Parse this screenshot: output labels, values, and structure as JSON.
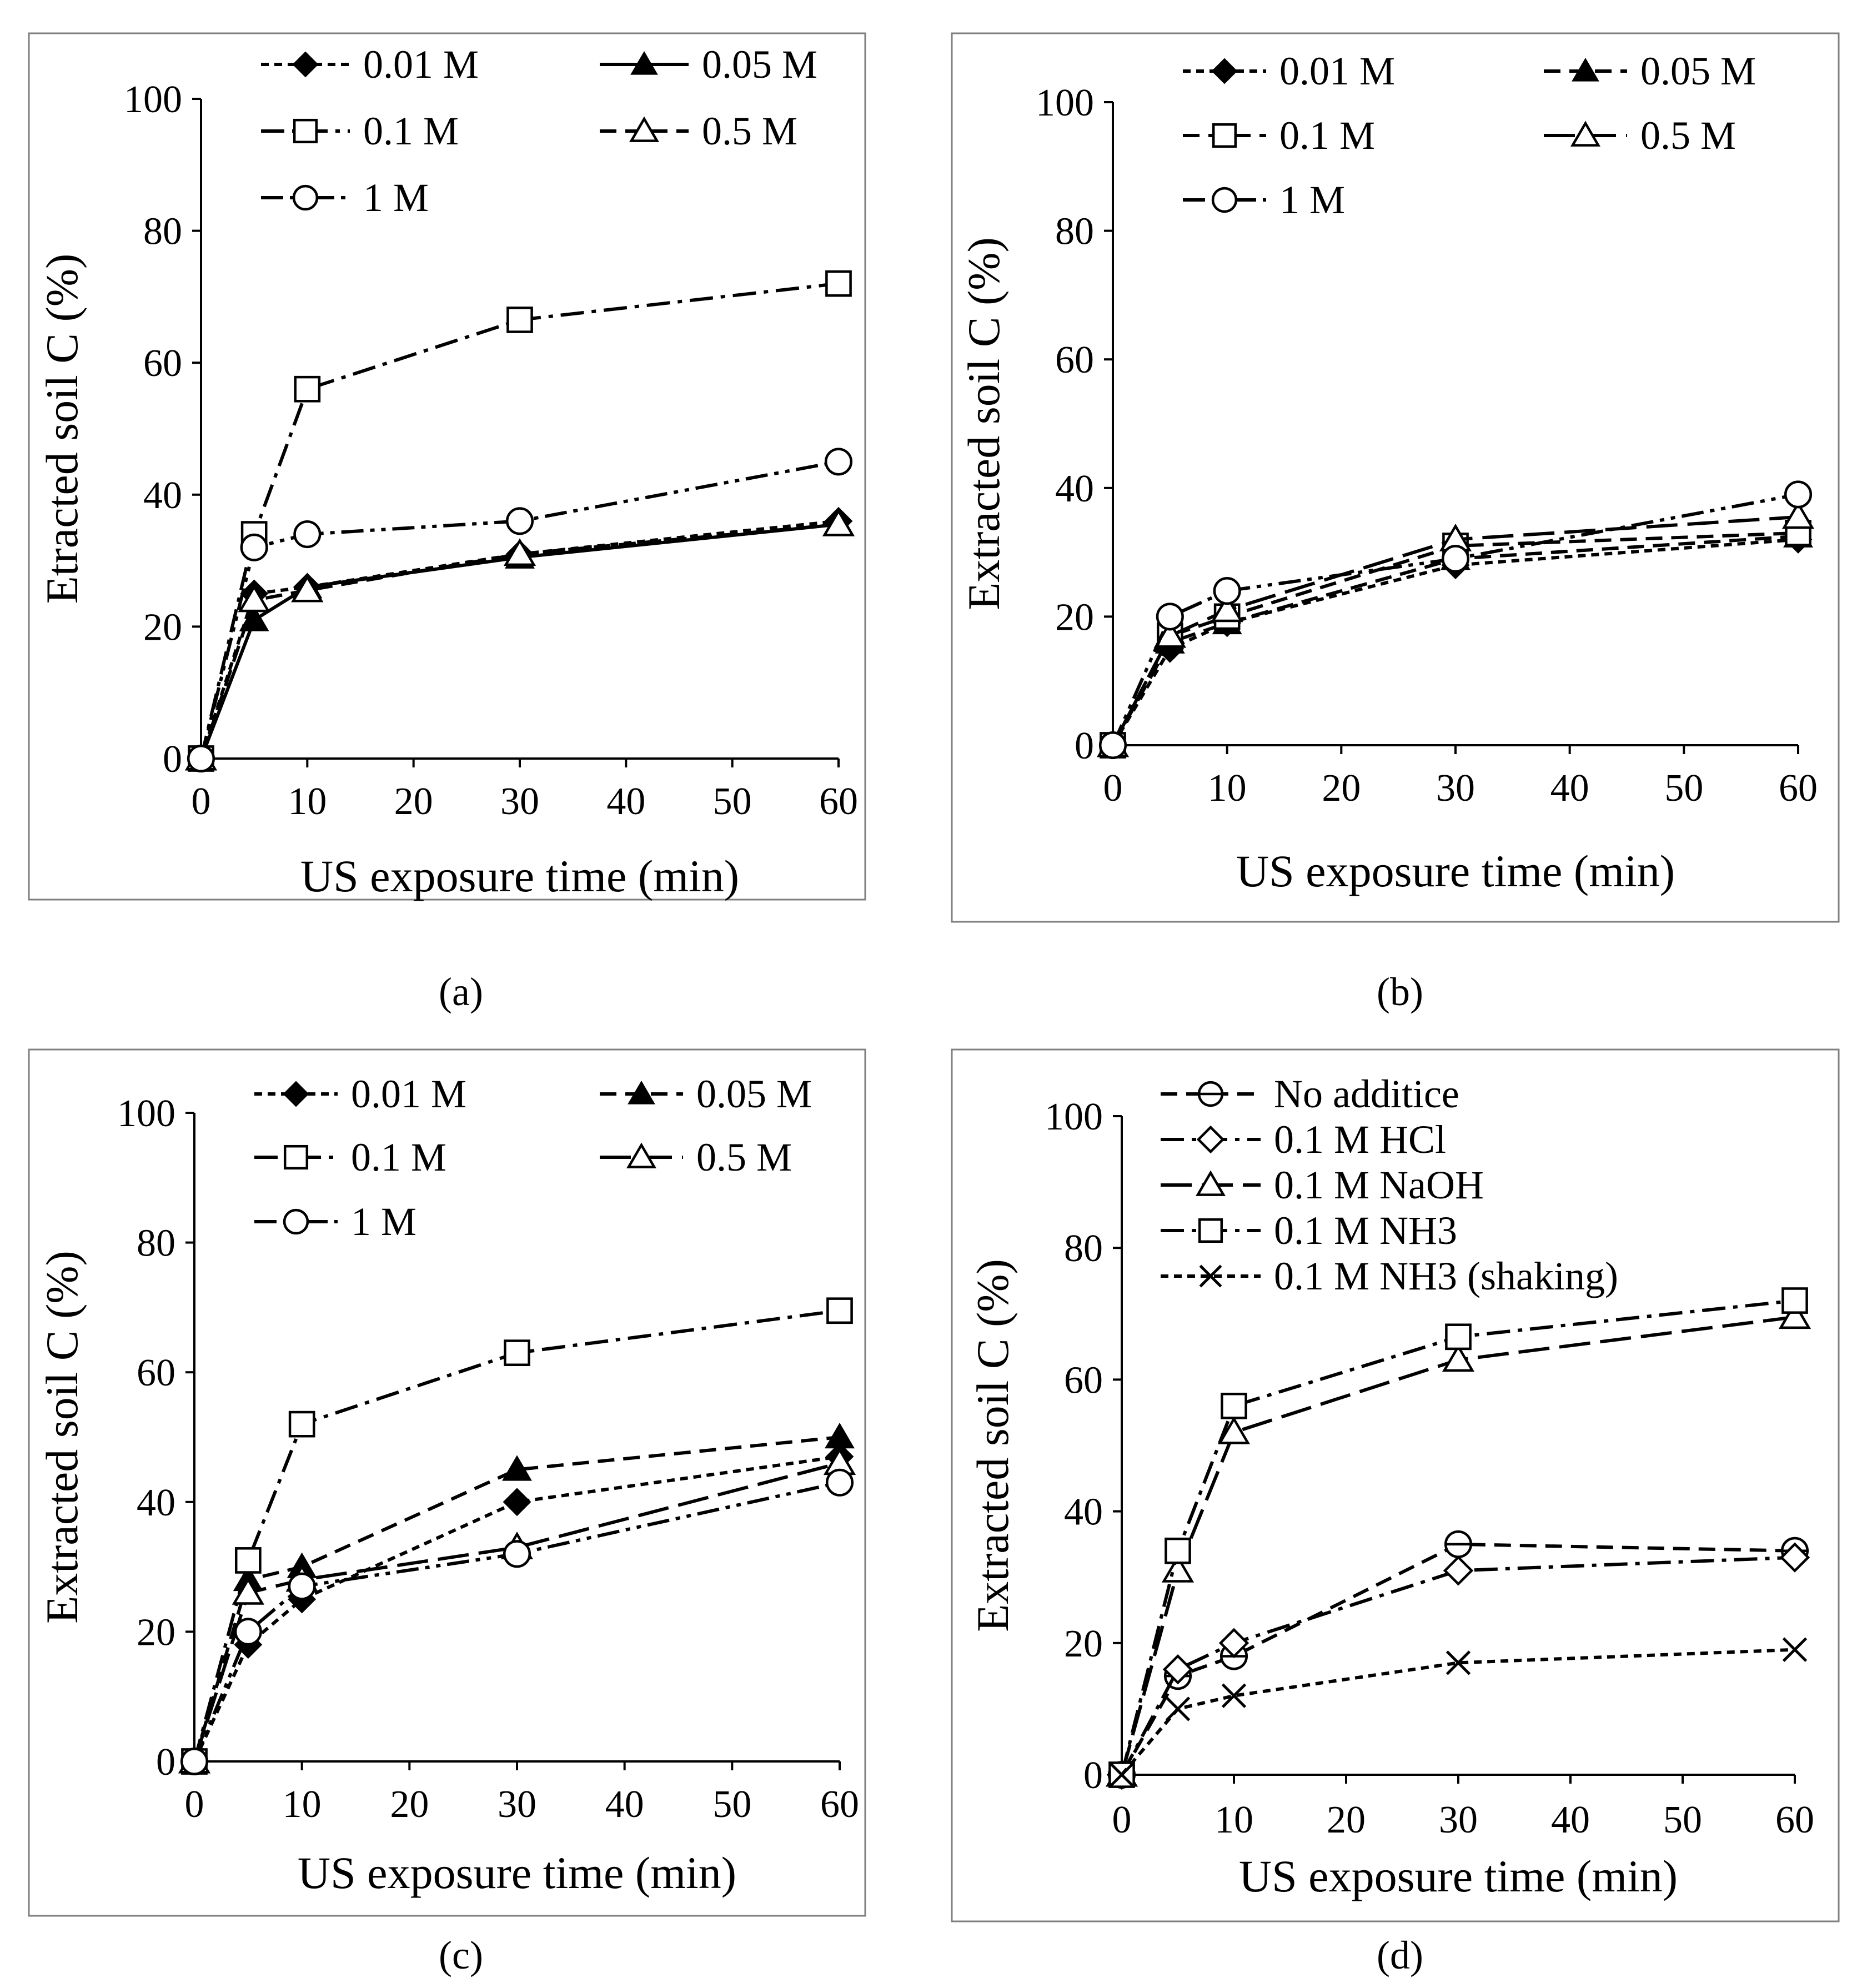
{
  "chart_data": [
    {
      "panel": "a",
      "caption": "(a)",
      "type": "line",
      "xlabel": "US exposure time (min)",
      "ylabel": "Etracted soil C (%)",
      "xlim": [
        0,
        60
      ],
      "ylim": [
        0,
        100
      ],
      "xticks": [
        "0",
        "10",
        "20",
        "30",
        "40",
        "50",
        "60"
      ],
      "yticks": [
        "0",
        "20",
        "40",
        "60",
        "80",
        "100"
      ],
      "x": [
        0,
        5,
        10,
        30,
        60
      ],
      "legend_position": "top",
      "series": [
        {
          "name": "0.01 M",
          "marker": "diamond-filled",
          "dash": "short",
          "values": [
            0,
            25,
            26,
            31,
            36
          ]
        },
        {
          "name": "0.05 M",
          "marker": "triangle-filled",
          "dash": "solid",
          "values": [
            0,
            21,
            26,
            30.5,
            35.5
          ]
        },
        {
          "name": "0.1 M",
          "marker": "square-open",
          "dash": "dashdot",
          "values": [
            0,
            34,
            56,
            66.5,
            72
          ]
        },
        {
          "name": "0.5 M",
          "marker": "triangle-open",
          "dash": "dash",
          "values": [
            0,
            24,
            25.5,
            31,
            35.5
          ]
        },
        {
          "name": "1 M",
          "marker": "circle-open",
          "dash": "dashdotdot",
          "values": [
            0,
            32,
            34,
            36,
            45
          ]
        }
      ]
    },
    {
      "panel": "b",
      "caption": "(b)",
      "type": "line",
      "xlabel": "US exposure time (min)",
      "ylabel": "Extracted soil C (%)",
      "xlim": [
        0,
        60
      ],
      "ylim": [
        0,
        100
      ],
      "xticks": [
        "0",
        "10",
        "20",
        "30",
        "40",
        "50",
        "60"
      ],
      "yticks": [
        "0",
        "20",
        "40",
        "60",
        "80",
        "100"
      ],
      "x": [
        0,
        5,
        10,
        30,
        60
      ],
      "legend_position": "top",
      "series": [
        {
          "name": "0.01 M",
          "marker": "diamond-filled",
          "dash": "short",
          "values": [
            0,
            15,
            19,
            28,
            32
          ]
        },
        {
          "name": "0.05 M",
          "marker": "triangle-filled",
          "dash": "dash",
          "values": [
            0,
            16,
            19,
            29,
            32.5
          ]
        },
        {
          "name": "0.1 M",
          "marker": "square-open",
          "dash": "dash",
          "values": [
            0,
            17,
            20,
            31,
            33
          ]
        },
        {
          "name": "0.5 M",
          "marker": "triangle-open",
          "dash": "longdash",
          "values": [
            0,
            17,
            21,
            32,
            35.5
          ]
        },
        {
          "name": "1 M",
          "marker": "circle-open",
          "dash": "dashdotdot",
          "values": [
            0,
            20,
            24,
            29,
            39
          ]
        }
      ]
    },
    {
      "panel": "c",
      "caption": "(c)",
      "type": "line",
      "xlabel": "US exposure time (min)",
      "ylabel": "Extracted soil C (%)",
      "xlim": [
        0,
        60
      ],
      "ylim": [
        0,
        100
      ],
      "xticks": [
        "0",
        "10",
        "20",
        "30",
        "40",
        "50",
        "60"
      ],
      "yticks": [
        "0",
        "20",
        "40",
        "60",
        "80",
        "100"
      ],
      "x": [
        0,
        5,
        10,
        30,
        60
      ],
      "legend_position": "top",
      "series": [
        {
          "name": "0.01 M",
          "marker": "diamond-filled",
          "dash": "short",
          "values": [
            0,
            18,
            25,
            40,
            47
          ]
        },
        {
          "name": "0.05 M",
          "marker": "triangle-filled",
          "dash": "dash",
          "values": [
            0,
            28,
            30,
            45,
            50
          ]
        },
        {
          "name": "0.1 M",
          "marker": "square-open",
          "dash": "dashdot",
          "values": [
            0,
            31,
            52,
            63,
            69.5
          ]
        },
        {
          "name": "0.5 M",
          "marker": "triangle-open",
          "dash": "longdash",
          "values": [
            0,
            26,
            28,
            33,
            46
          ]
        },
        {
          "name": "1 M",
          "marker": "circle-open",
          "dash": "dashdotdot",
          "values": [
            0,
            20,
            27,
            32,
            43
          ]
        }
      ]
    },
    {
      "panel": "d",
      "caption": "(d)",
      "type": "line",
      "xlabel": "US exposure time (min)",
      "ylabel": "Extracted soil C (%)",
      "xlim": [
        0,
        60
      ],
      "ylim": [
        0,
        100
      ],
      "xticks": [
        "0",
        "10",
        "20",
        "30",
        "40",
        "50",
        "60"
      ],
      "yticks": [
        "0",
        "20",
        "40",
        "60",
        "80",
        "100"
      ],
      "x": [
        0,
        5,
        10,
        30,
        60
      ],
      "legend_position": "top-left",
      "series": [
        {
          "name": "No additice",
          "marker": "circle-minus",
          "dash": "dash",
          "values": [
            0,
            15,
            18,
            35,
            34
          ]
        },
        {
          "name": "0.1 M HCl",
          "marker": "diamond-open",
          "dash": "dashdot",
          "values": [
            0,
            16,
            20,
            31,
            33
          ]
        },
        {
          "name": "0.1 M NaOH",
          "marker": "triangle-open",
          "dash": "longdash",
          "values": [
            0,
            31,
            52,
            63,
            69.5
          ]
        },
        {
          "name": "0.1 M NH3",
          "marker": "square-open",
          "dash": "dashdot",
          "values": [
            0,
            34,
            56,
            66.5,
            72
          ]
        },
        {
          "name": "0.1 M NH3 (shaking)",
          "marker": "x",
          "dash": "short",
          "values": [
            0,
            10,
            12,
            17,
            19
          ]
        }
      ]
    }
  ]
}
